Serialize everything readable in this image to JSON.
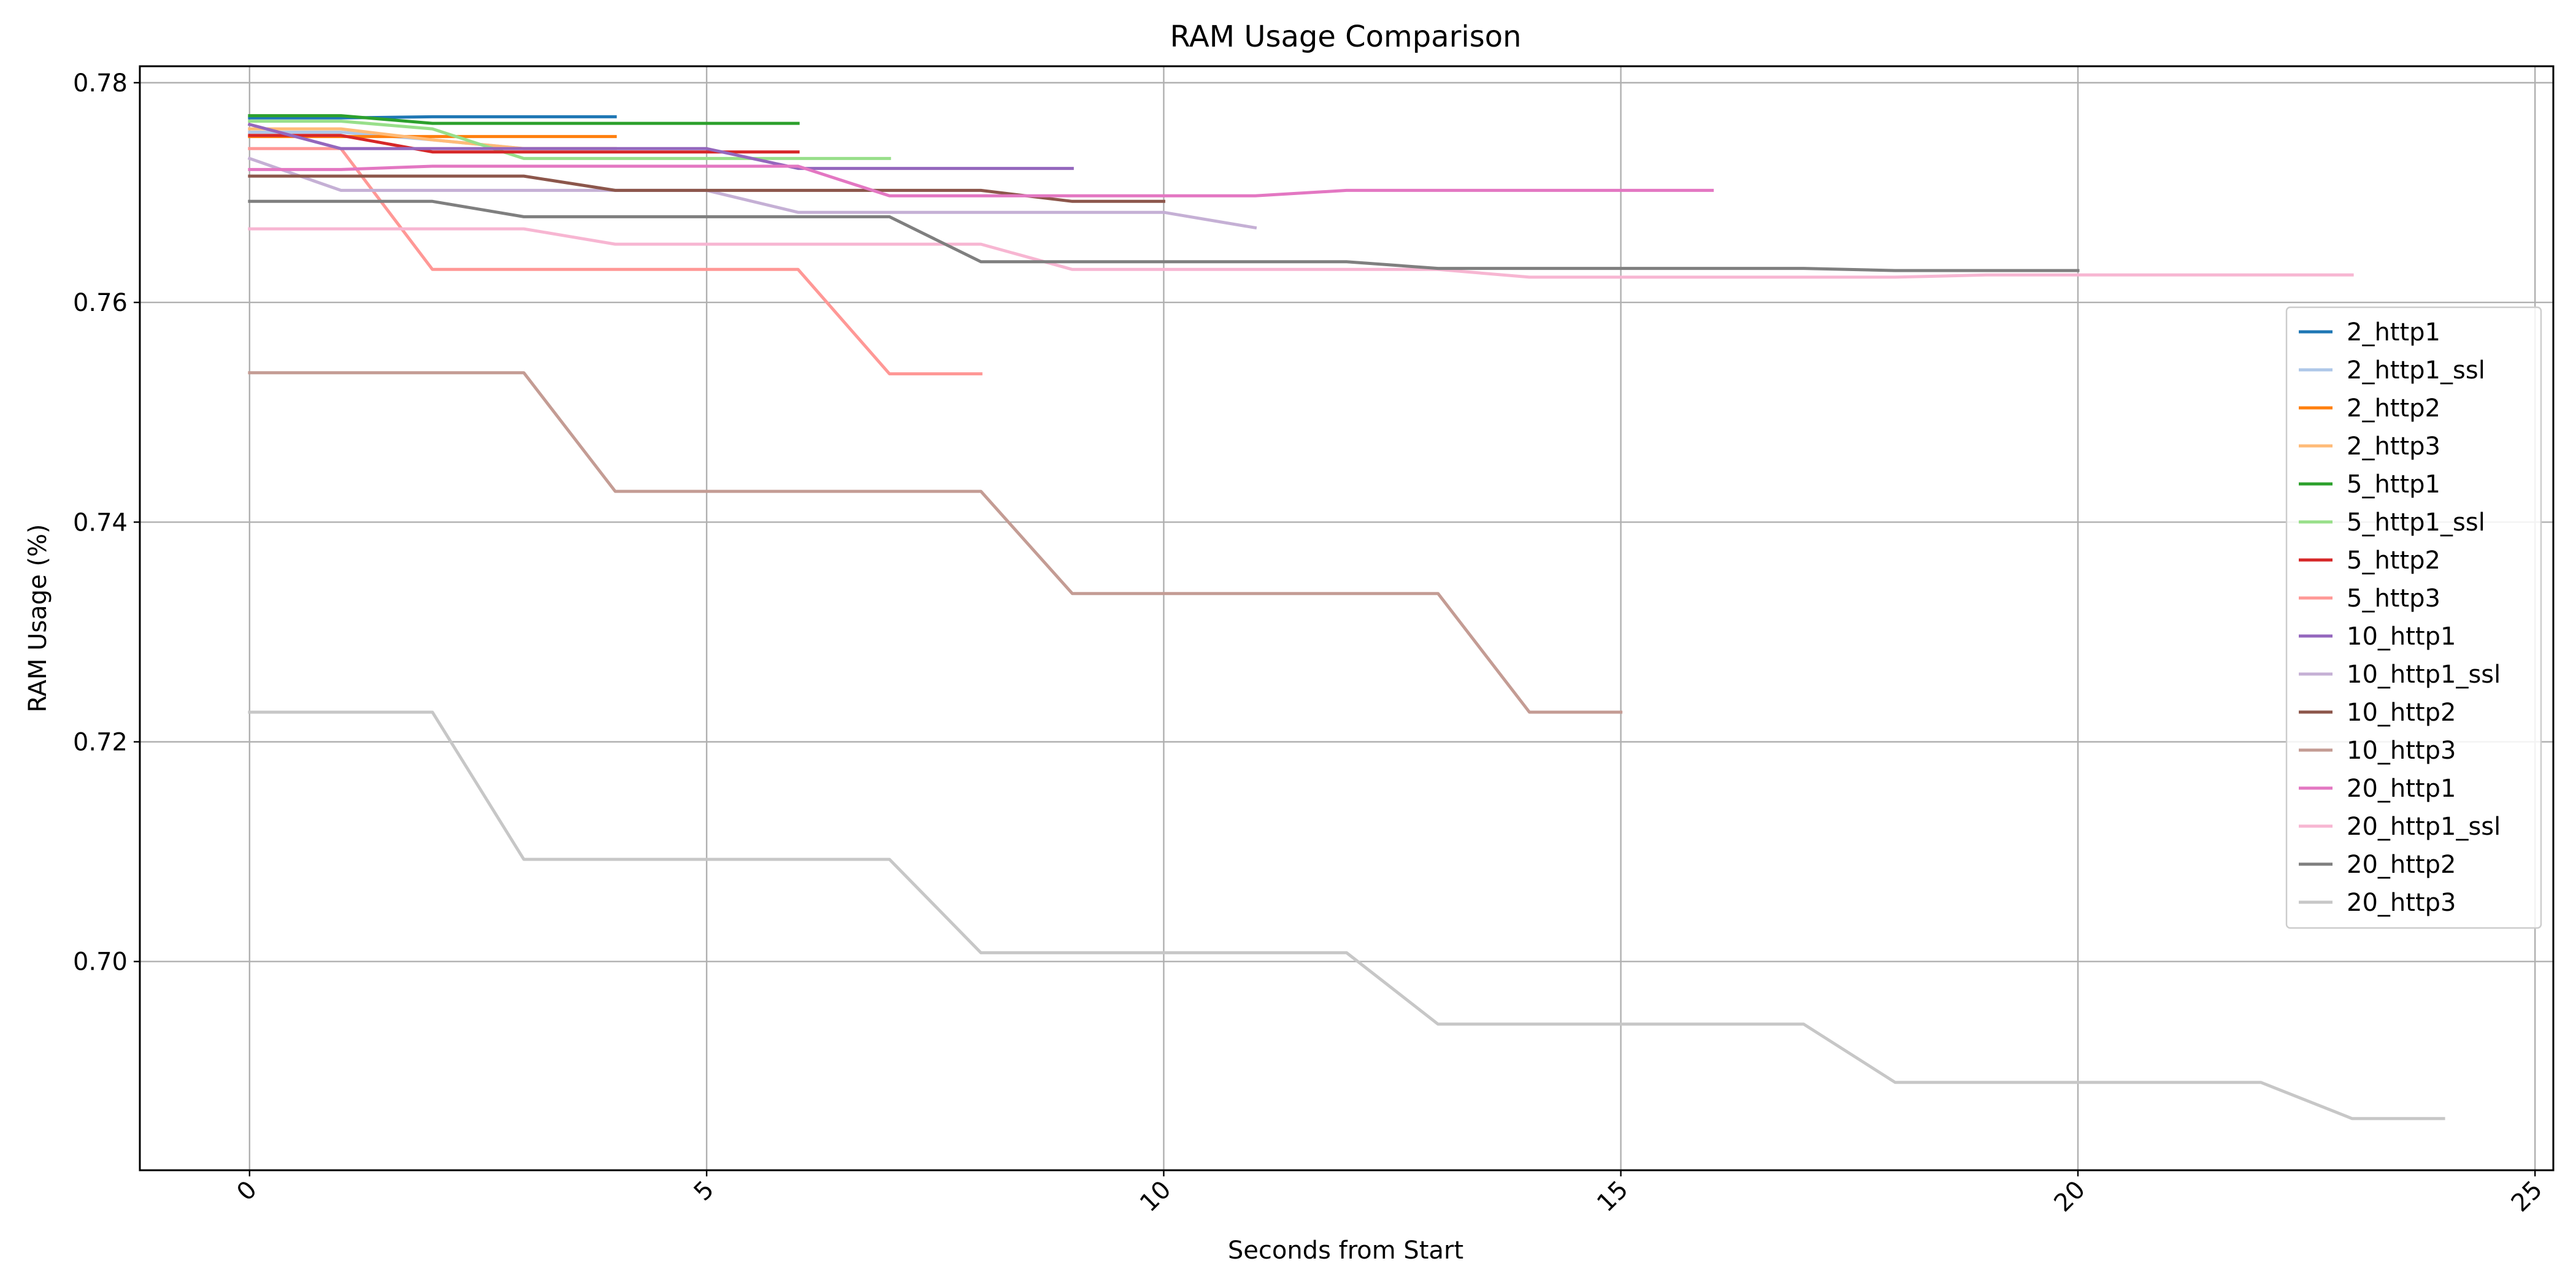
{
  "chart_data": {
    "type": "line",
    "title": "RAM Usage Comparison",
    "xlabel": "Seconds from Start",
    "ylabel": "RAM Usage (%)",
    "xlim": [
      -1.2,
      25.2
    ],
    "ylim": [
      0.681,
      0.7815
    ],
    "xticks": [
      0,
      5,
      10,
      15,
      20,
      25
    ],
    "xtick_labels": [
      "0",
      "5",
      "10",
      "15",
      "20",
      "25"
    ],
    "xtick_rotation": 45,
    "yticks": [
      0.7,
      0.72,
      0.74,
      0.76,
      0.78
    ],
    "ytick_labels": [
      "0.70",
      "0.72",
      "0.74",
      "0.76",
      "0.78"
    ],
    "grid": true,
    "legend_position": "center-right",
    "series": [
      {
        "name": "2_http1",
        "color": "#1f77b4",
        "x": [
          0,
          1,
          2,
          3,
          4
        ],
        "y": [
          0.7768,
          0.7768,
          0.7769,
          0.7769,
          0.7769
        ]
      },
      {
        "name": "2_http1_ssl",
        "color": "#aec7e8",
        "x": [
          0,
          1,
          2,
          3,
          4
        ],
        "y": [
          0.7755,
          0.7755,
          0.7748,
          0.774,
          0.774
        ]
      },
      {
        "name": "2_http2",
        "color": "#ff7f0e",
        "x": [
          0,
          1,
          2,
          3,
          4
        ],
        "y": [
          0.7751,
          0.7751,
          0.7751,
          0.7751,
          0.7751
        ]
      },
      {
        "name": "2_http3",
        "color": "#ffbb78",
        "x": [
          0,
          1,
          2,
          3,
          4
        ],
        "y": [
          0.7758,
          0.7758,
          0.7748,
          0.774,
          0.774
        ]
      },
      {
        "name": "5_http1",
        "color": "#2ca02c",
        "x": [
          0,
          1,
          2,
          3,
          4,
          5,
          6
        ],
        "y": [
          0.777,
          0.777,
          0.7763,
          0.7763,
          0.7763,
          0.7763,
          0.7763
        ]
      },
      {
        "name": "5_http1_ssl",
        "color": "#98df8a",
        "x": [
          0,
          1,
          2,
          3,
          4,
          5,
          6,
          7
        ],
        "y": [
          0.7765,
          0.7765,
          0.7758,
          0.7731,
          0.7731,
          0.7731,
          0.7731,
          0.7731
        ]
      },
      {
        "name": "5_http2",
        "color": "#d62728",
        "x": [
          0,
          1,
          2,
          3,
          4,
          5,
          6
        ],
        "y": [
          0.7752,
          0.7752,
          0.7737,
          0.7737,
          0.7737,
          0.7737,
          0.7737
        ]
      },
      {
        "name": "5_http3",
        "color": "#ff9896",
        "x": [
          0,
          1,
          2,
          3,
          4,
          5,
          6,
          7,
          8
        ],
        "y": [
          0.774,
          0.774,
          0.763,
          0.763,
          0.763,
          0.763,
          0.763,
          0.7535,
          0.7535
        ]
      },
      {
        "name": "10_http1",
        "color": "#9467bd",
        "x": [
          0,
          1,
          2,
          3,
          4,
          5,
          6,
          7,
          8,
          9
        ],
        "y": [
          0.7762,
          0.774,
          0.774,
          0.774,
          0.774,
          0.774,
          0.7722,
          0.7722,
          0.7722,
          0.7722
        ]
      },
      {
        "name": "10_http1_ssl",
        "color": "#c5b0d5",
        "x": [
          0,
          1,
          2,
          3,
          4,
          5,
          6,
          7,
          8,
          9,
          10,
          11
        ],
        "y": [
          0.7731,
          0.7702,
          0.7702,
          0.7702,
          0.7702,
          0.7702,
          0.7682,
          0.7682,
          0.7682,
          0.7682,
          0.7682,
          0.7668
        ]
      },
      {
        "name": "10_http2",
        "color": "#8c564b",
        "x": [
          0,
          1,
          2,
          3,
          4,
          5,
          6,
          7,
          8,
          9,
          10
        ],
        "y": [
          0.7715,
          0.7715,
          0.7715,
          0.7715,
          0.7702,
          0.7702,
          0.7702,
          0.7702,
          0.7702,
          0.7692,
          0.7692
        ]
      },
      {
        "name": "10_http3",
        "color": "#c49c94",
        "x": [
          0,
          1,
          2,
          3,
          4,
          5,
          6,
          7,
          8,
          9,
          10,
          11,
          12,
          13,
          14,
          15
        ],
        "y": [
          0.7536,
          0.7536,
          0.7536,
          0.7536,
          0.7428,
          0.7428,
          0.7428,
          0.7428,
          0.7428,
          0.7335,
          0.7335,
          0.7335,
          0.7335,
          0.7335,
          0.7227,
          0.7227
        ]
      },
      {
        "name": "20_http1",
        "color": "#e377c2",
        "x": [
          0,
          1,
          2,
          3,
          4,
          5,
          6,
          7,
          8,
          9,
          10,
          11,
          12,
          13,
          14,
          15,
          16
        ],
        "y": [
          0.7721,
          0.7721,
          0.7724,
          0.7724,
          0.7724,
          0.7724,
          0.7724,
          0.7697,
          0.7697,
          0.7697,
          0.7697,
          0.7697,
          0.7702,
          0.7702,
          0.7702,
          0.7702,
          0.7702
        ]
      },
      {
        "name": "20_http1_ssl",
        "color": "#f7b6d2",
        "x": [
          0,
          1,
          2,
          3,
          4,
          5,
          6,
          7,
          8,
          9,
          10,
          11,
          12,
          13,
          14,
          15,
          16,
          17,
          18,
          19,
          20,
          21,
          22,
          23
        ],
        "y": [
          0.7667,
          0.7667,
          0.7667,
          0.7667,
          0.7653,
          0.7653,
          0.7653,
          0.7653,
          0.7653,
          0.763,
          0.763,
          0.763,
          0.763,
          0.763,
          0.7623,
          0.7623,
          0.7623,
          0.7623,
          0.7623,
          0.7625,
          0.7625,
          0.7625,
          0.7625,
          0.7625
        ]
      },
      {
        "name": "20_http2",
        "color": "#7f7f7f",
        "x": [
          0,
          1,
          2,
          3,
          4,
          5,
          6,
          7,
          8,
          9,
          10,
          11,
          12,
          13,
          14,
          15,
          16,
          17,
          18,
          19,
          20
        ],
        "y": [
          0.7692,
          0.7692,
          0.7692,
          0.7678,
          0.7678,
          0.7678,
          0.7678,
          0.7678,
          0.7637,
          0.7637,
          0.7637,
          0.7637,
          0.7637,
          0.7631,
          0.7631,
          0.7631,
          0.7631,
          0.7631,
          0.7629,
          0.7629,
          0.7629
        ]
      },
      {
        "name": "20_http3",
        "color": "#c7c7c7",
        "x": [
          0,
          1,
          2,
          3,
          4,
          5,
          6,
          7,
          8,
          9,
          10,
          11,
          12,
          13,
          14,
          15,
          16,
          17,
          18,
          19,
          20,
          21,
          22,
          23,
          24
        ],
        "y": [
          0.7227,
          0.7227,
          0.7227,
          0.7093,
          0.7093,
          0.7093,
          0.7093,
          0.7093,
          0.7008,
          0.7008,
          0.7008,
          0.7008,
          0.7008,
          0.6943,
          0.6943,
          0.6943,
          0.6943,
          0.6943,
          0.689,
          0.689,
          0.689,
          0.689,
          0.689,
          0.6857,
          0.6857
        ]
      }
    ]
  }
}
